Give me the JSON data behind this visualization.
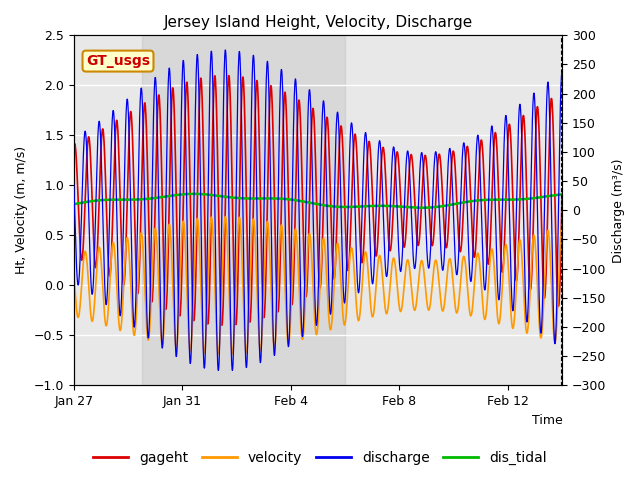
{
  "title": "Jersey Island Height, Velocity, Discharge",
  "xlabel": "Time",
  "ylabel_left": "Ht, Velocity (m, m/s)",
  "ylabel_right": "Discharge (m³/s)",
  "ylim_left": [
    -1.0,
    2.5
  ],
  "ylim_right": [
    -300,
    300
  ],
  "xtick_labels": [
    "Jan 27",
    "Jan 31",
    "Feb 4",
    "Feb 8",
    "Feb 12"
  ],
  "gt_label": "GT_usgs",
  "gt_label_color": "#cc0000",
  "gt_box_facecolor": "#ffffcc",
  "gt_box_edgecolor": "#cc8800",
  "series_colors": {
    "gageht": "#dd0000",
    "velocity": "#ff9900",
    "discharge": "#0000ee",
    "dis_tidal": "#00bb00"
  },
  "bg_color": "#ffffff",
  "plot_bg_color": "#e8e8e8",
  "shaded_bg": "#d8d8d8",
  "title_fontsize": 11,
  "label_fontsize": 9,
  "tick_fontsize": 9
}
